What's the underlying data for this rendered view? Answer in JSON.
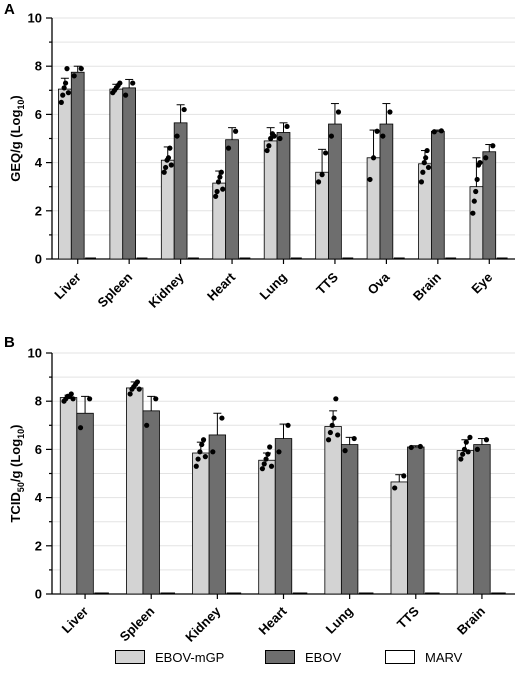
{
  "legend": {
    "items": [
      {
        "label": "EBOV-mGP",
        "color": "#d3d3d3"
      },
      {
        "label": "EBOV",
        "color": "#6e6e6e"
      },
      {
        "label": "MARV",
        "color": "#ffffff"
      }
    ]
  },
  "chart_data": [
    {
      "type": "bar",
      "panel": "A",
      "ylabel_main": "GEQ/g (Log",
      "ylabel_sub": "10",
      "ylabel_tail": ")",
      "ylim": [
        0,
        10
      ],
      "yticks": [
        "0",
        "2",
        "4",
        "6",
        "8",
        "10"
      ],
      "grid": true,
      "categories": [
        "Liver",
        "Spleen",
        "Kidney",
        "Heart",
        "Lung",
        "TTS",
        "Ova",
        "Brain",
        "Eye"
      ],
      "series": [
        {
          "name": "EBOV-mGP",
          "values": [
            7.05,
            7.05,
            4.1,
            3.15,
            4.9,
            3.6,
            4.2,
            3.95,
            3.0
          ],
          "errors": [
            0.45,
            0.2,
            0.55,
            0.5,
            0.55,
            0.95,
            1.15,
            0.55,
            1.2
          ],
          "points": [
            [
              6.5,
              6.8,
              7.1,
              7.3,
              7.9,
              6.9
            ],
            [
              6.9,
              7.0,
              7.1,
              7.2,
              7.3
            ],
            [
              3.6,
              3.8,
              4.1,
              4.2,
              4.6,
              3.9
            ],
            [
              2.6,
              2.8,
              3.2,
              3.4,
              3.6,
              2.9
            ],
            [
              4.5,
              4.7,
              5.0,
              5.2,
              5.1
            ],
            [
              3.2,
              3.5,
              4.4
            ],
            [
              3.3,
              4.2,
              5.3
            ],
            [
              3.2,
              3.6,
              4.0,
              4.2,
              4.5,
              3.8
            ],
            [
              1.9,
              2.4,
              2.8,
              3.3,
              3.9,
              4.0
            ]
          ]
        },
        {
          "name": "EBOV",
          "values": [
            7.75,
            7.1,
            5.65,
            4.95,
            5.25,
            5.6,
            5.6,
            5.3,
            4.45
          ],
          "errors": [
            0.25,
            0.35,
            0.75,
            0.5,
            0.4,
            0.85,
            0.85,
            0.05,
            0.3
          ],
          "points": [
            [
              7.6,
              7.9
            ],
            [
              6.8,
              7.3
            ],
            [
              5.1,
              6.2
            ],
            [
              4.6,
              5.3
            ],
            [
              5.0,
              5.5
            ],
            [
              5.1,
              6.1
            ],
            [
              5.1,
              6.1
            ],
            [
              5.28,
              5.32
            ],
            [
              4.2,
              4.7
            ]
          ]
        },
        {
          "name": "MARV",
          "values": [
            0,
            0,
            0,
            0,
            0,
            0,
            0,
            0,
            0
          ],
          "errors": [
            0,
            0,
            0,
            0,
            0,
            0,
            0,
            0,
            0
          ],
          "points": []
        }
      ]
    },
    {
      "type": "bar",
      "panel": "B",
      "ylabel_main": "TCID",
      "ylabel_sub": "50",
      "ylabel_tail": "/g (Log",
      "ylabel_sub2": "10",
      "ylabel_tail2": ")",
      "ylim": [
        0,
        10
      ],
      "yticks": [
        "0",
        "2",
        "4",
        "6",
        "8",
        "10"
      ],
      "grid": true,
      "categories": [
        "Liver",
        "Spleen",
        "Kidney",
        "Heart",
        "Lung",
        "TTS",
        "Brain"
      ],
      "series": [
        {
          "name": "EBOV-mGP",
          "values": [
            8.15,
            8.55,
            5.85,
            5.55,
            6.95,
            4.65,
            5.95
          ],
          "errors": [
            0.1,
            0.25,
            0.45,
            0.3,
            0.65,
            0.3,
            0.45
          ],
          "points": [
            [
              8.0,
              8.1,
              8.2,
              8.2,
              8.3,
              8.1
            ],
            [
              8.3,
              8.5,
              8.6,
              8.7,
              8.8,
              8.5
            ],
            [
              5.3,
              5.6,
              5.9,
              6.2,
              6.4,
              5.7
            ],
            [
              5.2,
              5.4,
              5.6,
              5.8,
              6.1,
              5.3
            ],
            [
              6.4,
              6.7,
              7.0,
              7.3,
              8.1,
              6.6
            ],
            [
              4.4,
              4.9
            ],
            [
              5.6,
              5.8,
              6.0,
              6.3,
              5.9,
              6.5
            ]
          ]
        },
        {
          "name": "EBOV",
          "values": [
            7.5,
            7.6,
            6.6,
            6.45,
            6.2,
            6.1,
            6.2
          ],
          "errors": [
            0.7,
            0.6,
            0.9,
            0.6,
            0.3,
            0.05,
            0.25
          ],
          "points": [
            [
              6.9,
              8.1
            ],
            [
              7.0,
              8.1
            ],
            [
              5.9,
              7.3
            ],
            [
              5.9,
              7.0
            ],
            [
              5.95,
              6.45
            ],
            [
              6.08,
              6.12
            ],
            [
              6.0,
              6.4
            ]
          ]
        },
        {
          "name": "MARV",
          "values": [
            0,
            0,
            0,
            0,
            0,
            0,
            0
          ],
          "errors": [
            0,
            0,
            0,
            0,
            0,
            0,
            0
          ],
          "points": []
        }
      ]
    }
  ]
}
